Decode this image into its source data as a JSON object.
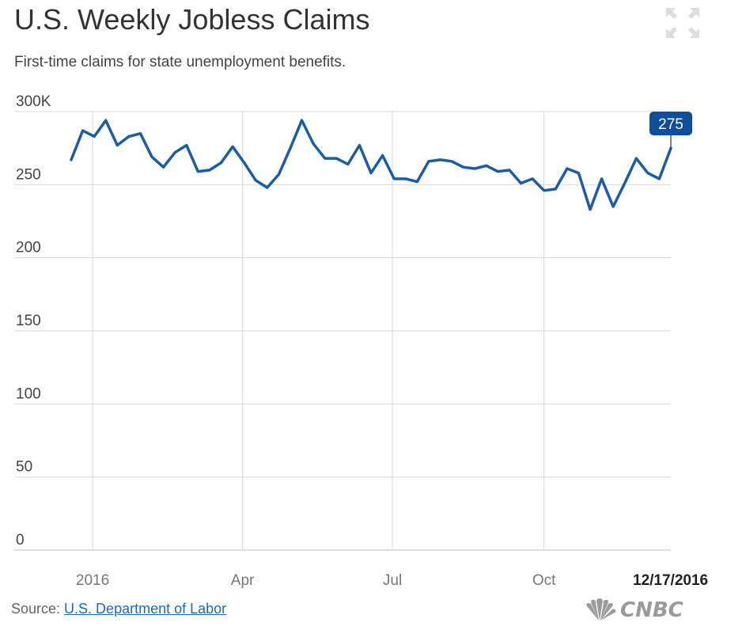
{
  "header": {
    "title": "U.S. Weekly Jobless Claims",
    "subtitle": "First-time claims for state unemployment benefits."
  },
  "expand_icon": "expand-arrows-icon",
  "footer": {
    "source_prefix": "Source: ",
    "source_link": "U.S. Department of Labor",
    "logo_text": "CNBC",
    "logo_icon": "peacock-icon"
  },
  "colors": {
    "line": "#1a5da6",
    "grid": "#d9d9d9",
    "callout": "#0f4f99",
    "text": "#333333"
  },
  "chart_data": {
    "type": "line",
    "title": "U.S. Weekly Jobless Claims",
    "subtitle": "First-time claims for state unemployment benefits.",
    "xlabel": "",
    "ylabel": "",
    "ylim": [
      0,
      300
    ],
    "yticks": [
      {
        "value": 300,
        "label": "300K"
      },
      {
        "value": 250,
        "label": "250"
      },
      {
        "value": 200,
        "label": "200"
      },
      {
        "value": 150,
        "label": "150"
      },
      {
        "value": 100,
        "label": "100"
      },
      {
        "value": 50,
        "label": "50"
      },
      {
        "value": 0,
        "label": "0"
      }
    ],
    "xlim": [
      "2015-12-19",
      "2016-12-17"
    ],
    "xticks": [
      {
        "value": "2016-01-01",
        "label": "2016"
      },
      {
        "value": "2016-04-01",
        "label": "Apr"
      },
      {
        "value": "2016-07-01",
        "label": "Jul"
      },
      {
        "value": "2016-10-01",
        "label": "Oct"
      },
      {
        "value": "2016-12-17",
        "label": "12/17/2016"
      }
    ],
    "grid": true,
    "callout": {
      "x": "2016-12-17",
      "value": 275,
      "label": "275"
    },
    "series": [
      {
        "x": [
          "2015-12-19",
          "2015-12-26",
          "2016-01-02",
          "2016-01-09",
          "2016-01-16",
          "2016-01-23",
          "2016-01-30",
          "2016-02-06",
          "2016-02-13",
          "2016-02-20",
          "2016-02-27",
          "2016-03-05",
          "2016-03-12",
          "2016-03-19",
          "2016-03-26",
          "2016-04-02",
          "2016-04-09",
          "2016-04-16",
          "2016-04-23",
          "2016-04-30",
          "2016-05-07",
          "2016-05-14",
          "2016-05-21",
          "2016-05-28",
          "2016-06-04",
          "2016-06-11",
          "2016-06-18",
          "2016-06-25",
          "2016-07-02",
          "2016-07-09",
          "2016-07-16",
          "2016-07-23",
          "2016-07-30",
          "2016-08-06",
          "2016-08-13",
          "2016-08-20",
          "2016-08-27",
          "2016-09-03",
          "2016-09-10",
          "2016-09-17",
          "2016-09-24",
          "2016-10-01",
          "2016-10-08",
          "2016-10-15",
          "2016-10-22",
          "2016-10-29",
          "2016-11-05",
          "2016-11-12",
          "2016-11-19",
          "2016-11-26",
          "2016-12-03",
          "2016-12-10",
          "2016-12-17"
        ],
        "values": [
          267,
          287,
          283,
          294,
          277,
          283,
          285,
          269,
          262,
          272,
          277,
          259,
          260,
          265,
          276,
          265,
          253,
          248,
          257,
          275,
          294,
          278,
          268,
          268,
          264,
          277,
          258,
          270,
          254,
          254,
          252,
          266,
          267,
          266,
          262,
          261,
          263,
          259,
          260,
          251,
          254,
          246,
          247,
          261,
          258,
          233,
          254,
          235,
          251,
          268,
          258,
          254,
          275
        ]
      }
    ]
  }
}
